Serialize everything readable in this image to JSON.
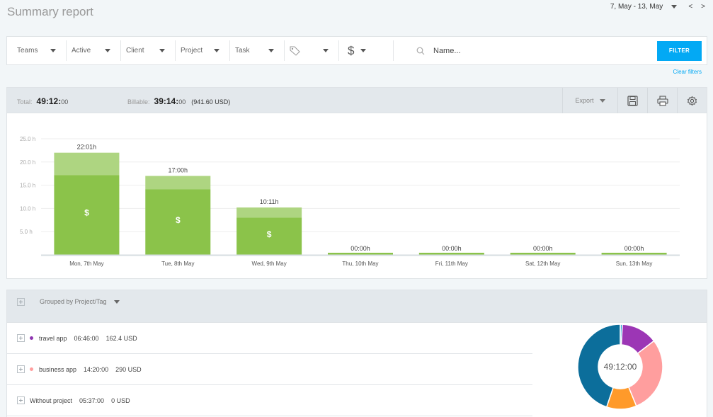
{
  "header": {
    "title": "Summary report",
    "date_range": "7, May - 13, May",
    "prev": "<",
    "next": ">"
  },
  "filters": {
    "teams": "Teams",
    "active": "Active",
    "client": "Client",
    "project": "Project",
    "task": "Task",
    "tag_icon": "tag-icon",
    "billable_icon": "$",
    "search_placeholder": "Name...",
    "filter_button": "FILTER",
    "clear_filters": "Clear filters"
  },
  "totals": {
    "total_label": "Total:",
    "total_main": "49:12:",
    "total_sec": "00",
    "billable_label": "Billable:",
    "billable_main": "39:14:",
    "billable_sec": "00",
    "billable_amount": "(941.60 USD)"
  },
  "toolbar": {
    "export": "Export",
    "save_icon": "save-icon",
    "print_icon": "print-icon",
    "settings_icon": "settings-icon"
  },
  "chart_data": {
    "type": "bar",
    "stacked": true,
    "categories": [
      "Mon, 7th May",
      "Tue, 8th May",
      "Wed, 9th May",
      "Thu, 10th May",
      "Fri, 11th May",
      "Sat, 12th May",
      "Sun, 13th May"
    ],
    "bar_labels": [
      "22:01h",
      "17:00h",
      "10:11h",
      "00:00h",
      "00:00h",
      "00:00h",
      "00:00h"
    ],
    "series": [
      {
        "values": [
          17.2,
          14.1,
          8.0,
          0,
          0,
          0,
          0
        ],
        "color": "#8bc34a",
        "marker": "$"
      },
      {
        "values": [
          4.8,
          2.9,
          2.2,
          0,
          0,
          0,
          0
        ],
        "color": "#aed581"
      }
    ],
    "ylim": [
      0,
      25
    ],
    "yticks": [
      "5.0 h",
      "10.0 h",
      "15.0 h",
      "20.0 h",
      "25.0 h"
    ],
    "ytick_values": [
      5,
      10,
      15,
      20,
      25
    ],
    "grid": true
  },
  "groups": {
    "grouped_by": "Grouped by Project/Tag",
    "rows": [
      {
        "name": "travel app",
        "time": "06:46:00",
        "amount": "162.4 USD",
        "color": "#8e35b0"
      },
      {
        "name": "business app",
        "time": "14:20:00",
        "amount": "290 USD",
        "color": "#ff9e9e"
      },
      {
        "name": "Without project",
        "time": "05:37:00",
        "amount": "0 USD",
        "color": ""
      }
    ],
    "donut": {
      "center_label": "49:12:00",
      "slices": [
        {
          "value": 0.8,
          "color": "#2a9fd6"
        },
        {
          "value": 13.8,
          "color": "#9c36b5"
        },
        {
          "value": 29.2,
          "color": "#ff9e9e"
        },
        {
          "value": 11.4,
          "color": "#ff9a2a"
        },
        {
          "value": 44.8,
          "color": "#0c6e9b"
        }
      ]
    }
  }
}
